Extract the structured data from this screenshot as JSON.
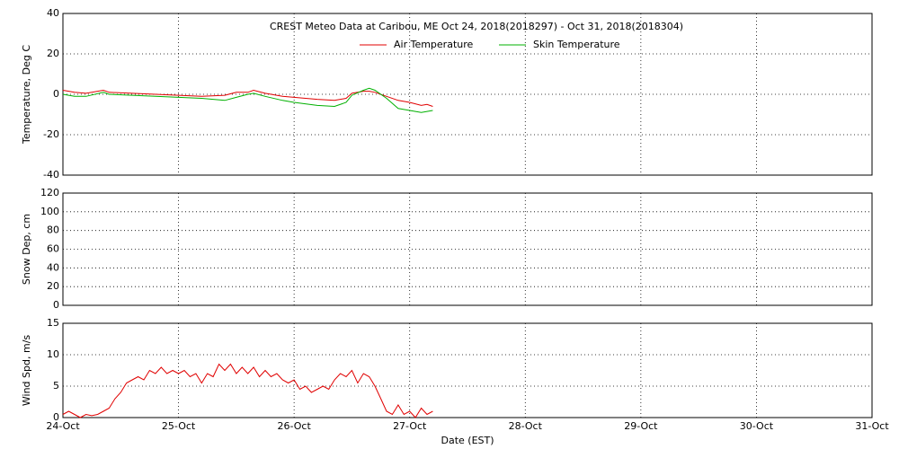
{
  "chart_data": [
    {
      "type": "line",
      "title": "CREST Meteo Data at Caribou, ME   Oct 24, 2018(2018297) - Oct 31, 2018(2018304)",
      "y_label": "Temperature, Deg C",
      "xlim": [
        24,
        31
      ],
      "ylim": [
        -40,
        40
      ],
      "yticks": [
        -40,
        -20,
        0,
        20,
        40
      ],
      "grid": true,
      "x": [
        24.0,
        24.1,
        24.2,
        24.35,
        24.4,
        24.6,
        24.8,
        25.0,
        25.2,
        25.4,
        25.5,
        25.6,
        25.65,
        25.75,
        25.9,
        26.0,
        26.2,
        26.35,
        26.45,
        26.5,
        26.6,
        26.65,
        26.7,
        26.8,
        26.9,
        27.0,
        27.1,
        27.15,
        27.2
      ],
      "series": [
        {
          "name": "Air Temperature",
          "color": "#e00000",
          "values": [
            2,
            1,
            0.5,
            2,
            1,
            0.5,
            0,
            -0.5,
            -1,
            -0.5,
            1,
            1,
            2,
            0.5,
            -1,
            -1.5,
            -2.5,
            -3,
            -2,
            0.5,
            1.5,
            1.5,
            1,
            -1,
            -3,
            -4,
            -5.5,
            -5,
            -6
          ]
        },
        {
          "name": "Skin Temperature",
          "color": "#00b000",
          "values": [
            0,
            -1,
            -1,
            1,
            0,
            -0.5,
            -1,
            -1.5,
            -2,
            -3,
            -1.5,
            0,
            0.5,
            -1,
            -3,
            -4,
            -5.5,
            -6,
            -4,
            -0.5,
            2,
            3,
            2,
            -2,
            -7,
            -8,
            -9,
            -8.5,
            -8
          ]
        }
      ]
    },
    {
      "type": "line",
      "y_label": "Snow Dep, cm",
      "xlim": [
        24,
        31
      ],
      "ylim": [
        0,
        120
      ],
      "yticks": [
        0,
        20,
        40,
        60,
        80,
        100,
        120
      ],
      "grid": true
    },
    {
      "type": "line",
      "y_label": "Wind Spd, m/s",
      "x_label": "Date (EST)",
      "xlim": [
        24,
        31
      ],
      "ylim": [
        0,
        15
      ],
      "yticks": [
        0,
        5,
        10,
        15
      ],
      "grid": true,
      "xticks": [
        {
          "value": 24,
          "label": "24-Oct"
        },
        {
          "value": 25,
          "label": "25-Oct"
        },
        {
          "value": 26,
          "label": "26-Oct"
        },
        {
          "value": 27,
          "label": "27-Oct"
        },
        {
          "value": 28,
          "label": "28-Oct"
        },
        {
          "value": 29,
          "label": "29-Oct"
        },
        {
          "value": 30,
          "label": "30-Oct"
        },
        {
          "value": 31,
          "label": "31-Oct"
        }
      ],
      "x": [
        24.0,
        24.05,
        24.1,
        24.15,
        24.2,
        24.25,
        24.3,
        24.35,
        24.4,
        24.45,
        24.5,
        24.55,
        24.6,
        24.65,
        24.7,
        24.75,
        24.8,
        24.85,
        24.9,
        24.95,
        25.0,
        25.05,
        25.1,
        25.15,
        25.2,
        25.25,
        25.3,
        25.35,
        25.4,
        25.45,
        25.5,
        25.55,
        25.6,
        25.65,
        25.7,
        25.75,
        25.8,
        25.85,
        25.9,
        25.95,
        26.0,
        26.05,
        26.1,
        26.15,
        26.2,
        26.25,
        26.3,
        26.35,
        26.4,
        26.45,
        26.5,
        26.55,
        26.6,
        26.65,
        26.7,
        26.75,
        26.8,
        26.85,
        26.9,
        26.95,
        27.0,
        27.05,
        27.1,
        27.15,
        27.2
      ],
      "series": [
        {
          "name": "Wind Speed",
          "color": "#e00000",
          "values": [
            0.5,
            1,
            0.5,
            0,
            0.5,
            0.3,
            0.5,
            1,
            1.5,
            3,
            4,
            5.5,
            6,
            6.5,
            6,
            7.5,
            7,
            8,
            7,
            7.5,
            7,
            7.5,
            6.5,
            7,
            5.5,
            7,
            6.5,
            8.5,
            7.5,
            8.5,
            7,
            8,
            7,
            8,
            6.5,
            7.5,
            6.5,
            7,
            6,
            5.5,
            6,
            4.5,
            5,
            4,
            4.5,
            5,
            4.5,
            6,
            7,
            6.5,
            7.5,
            5.5,
            7,
            6.5,
            5,
            3,
            1,
            0.5,
            2,
            0.5,
            1,
            0,
            1.5,
            0.5,
            1
          ]
        }
      ]
    }
  ]
}
